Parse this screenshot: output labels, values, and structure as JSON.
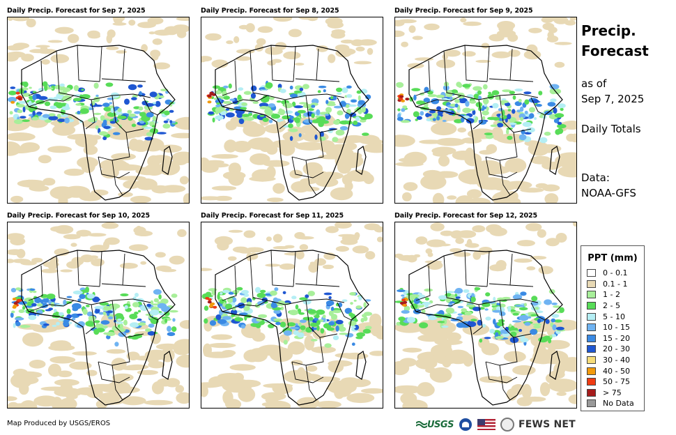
{
  "panels": [
    {
      "title": "Daily Precip. Forecast for Sep 7, 2025"
    },
    {
      "title": "Daily Precip. Forecast for Sep 8, 2025"
    },
    {
      "title": "Daily Precip. Forecast for Sep 9, 2025"
    },
    {
      "title": "Daily Precip. Forecast for Sep 10, 2025"
    },
    {
      "title": "Daily Precip. Forecast for Sep 11, 2025"
    },
    {
      "title": "Daily Precip. Forecast for Sep 12, 2025"
    }
  ],
  "sidebar": {
    "heading_line1": "Precip.",
    "heading_line2": "Forecast",
    "asof_line1": "as of",
    "asof_line2": "Sep 7, 2025",
    "totals": "Daily Totals",
    "data_line1": "Data:",
    "data_line2": "NOAA-GFS"
  },
  "legend": {
    "title": "PPT (mm)",
    "items": [
      {
        "label": "0 - 0.1",
        "color": "#ffffff"
      },
      {
        "label": "0.1 - 1",
        "color": "#e8d9b5"
      },
      {
        "label": "1 - 2",
        "color": "#a8ef9a"
      },
      {
        "label": "2 - 5",
        "color": "#58dc58"
      },
      {
        "label": "5 - 10",
        "color": "#b4eef4"
      },
      {
        "label": "10 - 15",
        "color": "#6fb3f2"
      },
      {
        "label": "15 - 20",
        "color": "#3a8ae4"
      },
      {
        "label": "20 - 30",
        "color": "#1f57d2"
      },
      {
        "label": "30 - 40",
        "color": "#f6dc7a"
      },
      {
        "label": "40 - 50",
        "color": "#f29a0c"
      },
      {
        "label": "50 - 75",
        "color": "#ef3b12"
      },
      {
        "label": "> 75",
        "color": "#a61c1c"
      },
      {
        "label": "No Data",
        "color": "#999999"
      }
    ]
  },
  "footer": {
    "credit": "Map Produced by USGS/EROS"
  },
  "logos": {
    "usgs": "USGS",
    "fews": "FEWS NET"
  }
}
